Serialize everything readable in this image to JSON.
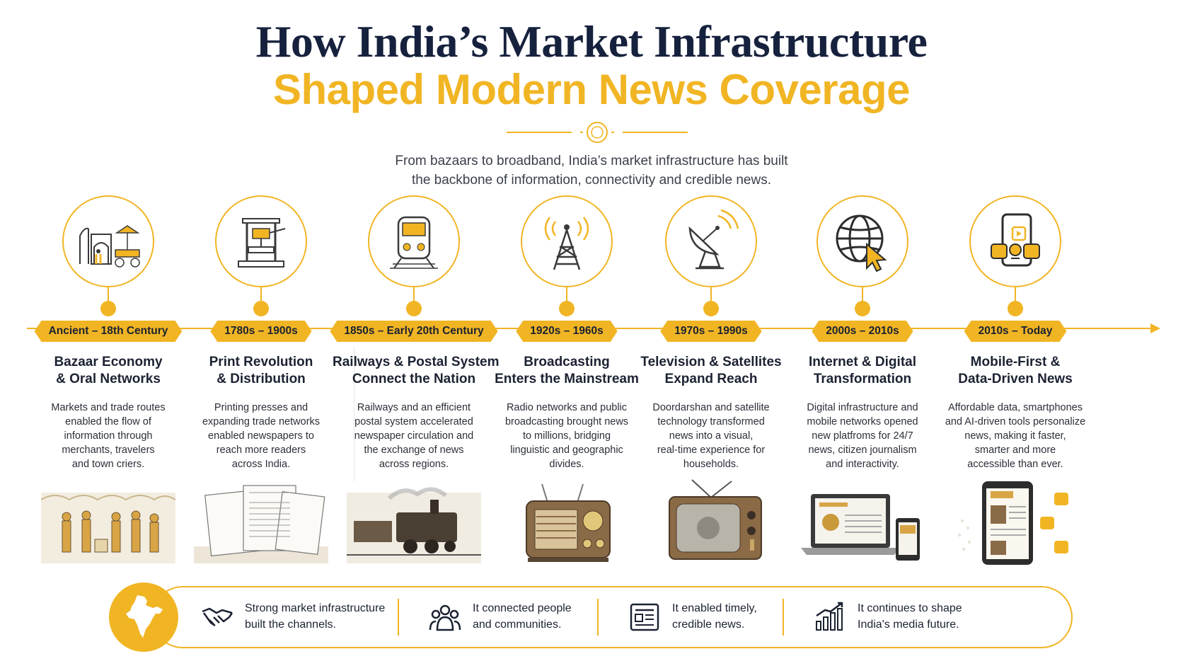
{
  "header": {
    "title_line1": "How India’s Market Infrastructure",
    "title_line2": "Shaped Modern News Coverage",
    "subtitle_line1": "From bazaars to broadband, India’s market infrastructure has built",
    "subtitle_line2": "the backbone of information, connectivity and credible news."
  },
  "colors": {
    "accent": "#f1b524",
    "navy": "#16213d",
    "text": "#1b2232"
  },
  "stages": [
    {
      "era": "Ancient – 18th Century",
      "heading": [
        "Bazaar Economy",
        "& Oral Networks"
      ],
      "desc": [
        "Markets and trade routes",
        "enabled the flow of",
        "information through",
        "merchants, travelers",
        "and town criers."
      ],
      "icon": "bazaar-icon",
      "illustration": "bazaar-market-illustration"
    },
    {
      "era": "1780s – 1900s",
      "heading": [
        "Print Revolution",
        "& Distribution"
      ],
      "desc": [
        "Printing presses and",
        "expanding trade networks",
        "enabled newspapers to",
        "reach more readers",
        "across India."
      ],
      "icon": "printing-press-icon",
      "illustration": "newspapers-illustration"
    },
    {
      "era": "1850s – Early 20th Century",
      "heading": [
        "Railways & Postal System",
        "Connect the Nation"
      ],
      "desc": [
        "Railways and an efficient",
        "postal system accelerated",
        "newspaper circulation and",
        "the exchange of news",
        "across regions."
      ],
      "icon": "train-icon",
      "illustration": "steam-train-illustration"
    },
    {
      "era": "1920s – 1960s",
      "heading": [
        "Broadcasting",
        "Enters the Mainstream"
      ],
      "desc": [
        "Radio networks and public",
        "broadcasting brought news",
        "to millions, bridging",
        "linguistic and geographic",
        "divides."
      ],
      "icon": "radio-tower-icon",
      "illustration": "vintage-radio-illustration"
    },
    {
      "era": "1970s – 1990s",
      "heading": [
        "Television & Satellites",
        "Expand Reach"
      ],
      "desc": [
        "Doordarshan and satellite",
        "technology transformed",
        "news into a visual,",
        "real-time experience for",
        "households."
      ],
      "icon": "satellite-dish-icon",
      "illustration": "vintage-tv-illustration"
    },
    {
      "era": "2000s – 2010s",
      "heading": [
        "Internet & Digital",
        "Transformation"
      ],
      "desc": [
        "Digital infrastructure and",
        "mobile networks opened",
        "new platfroms for 24/7",
        "news, citizen journalism",
        "and interactivity."
      ],
      "icon": "globe-cursor-icon",
      "illustration": "laptop-phone-illustration"
    },
    {
      "era": "2010s – Today",
      "heading": [
        "Mobile-First &",
        "Data-Driven News"
      ],
      "desc": [
        "Affordable data, smartphones",
        "and AI-driven tools personalize",
        "news, making it faster,",
        "smarter and more",
        "accessible than ever."
      ],
      "icon": "mobile-apps-icon",
      "illustration": "smartphone-news-illustration"
    }
  ],
  "takeaways": [
    {
      "icon": "handshake-icon",
      "lines": [
        "Strong market infrastructure",
        "built the channels."
      ]
    },
    {
      "icon": "people-icon",
      "lines": [
        "It connected people",
        "and communities."
      ]
    },
    {
      "icon": "newspaper-icon",
      "lines": [
        "It enabled timely,",
        "credible news."
      ]
    },
    {
      "icon": "growth-chart-icon",
      "lines": [
        "It continues to shape",
        "India's media future."
      ]
    }
  ]
}
